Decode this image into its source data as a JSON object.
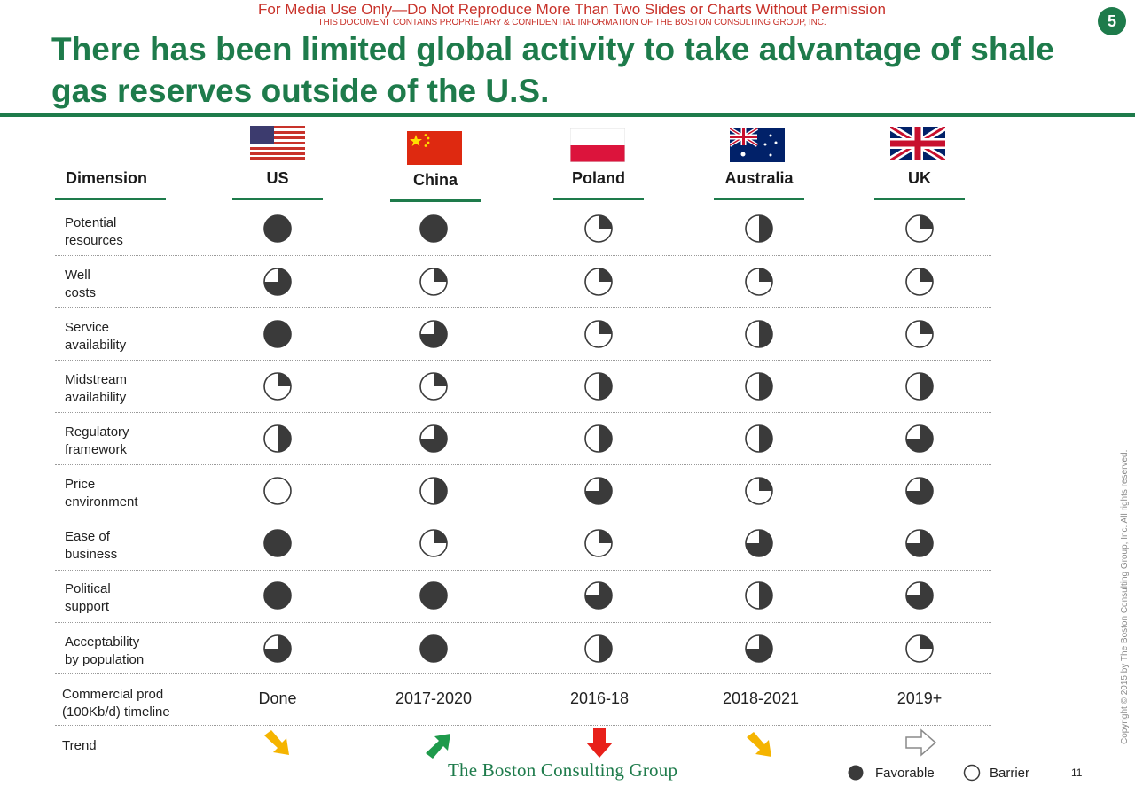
{
  "header": {
    "disclaimer": "For Media Use Only—Do Not Reproduce More Than Two Slides or Charts Without Permission",
    "confidential": "THIS DOCUMENT CONTAINS PROPRIETARY & CONFIDENTIAL INFORMATION OF THE BOSTON CONSULTING GROUP, INC.",
    "badge": "5",
    "title": "There has been limited global activity to take advantage of shale gas reserves outside of the U.S."
  },
  "table": {
    "dimension_header": "Dimension",
    "countries": [
      {
        "name": "US",
        "flag": "us-flag-icon"
      },
      {
        "name": "China",
        "flag": "china-flag-icon"
      },
      {
        "name": "Poland",
        "flag": "poland-flag-icon"
      },
      {
        "name": "Australia",
        "flag": "australia-flag-icon"
      },
      {
        "name": "UK",
        "flag": "uk-flag-icon"
      }
    ],
    "rows": [
      {
        "line1": "Potential",
        "line2": "resources",
        "ratings": [
          1,
          1,
          0.25,
          0.5,
          0.25
        ]
      },
      {
        "line1": "Well",
        "line2": "costs",
        "ratings": [
          0.75,
          0.25,
          0.25,
          0.25,
          0.25
        ]
      },
      {
        "line1": "Service",
        "line2": "availability",
        "ratings": [
          1,
          0.75,
          0.25,
          0.5,
          0.25
        ]
      },
      {
        "line1": "Midstream",
        "line2": "availability",
        "ratings": [
          0.25,
          0.25,
          0.5,
          0.5,
          0.5
        ]
      },
      {
        "line1": "Regulatory",
        "line2": "framework",
        "ratings": [
          0.5,
          0.75,
          0.5,
          0.5,
          0.75
        ]
      },
      {
        "line1": "Price",
        "line2": "environment",
        "ratings": [
          0,
          0.5,
          0.75,
          0.25,
          0.75
        ]
      },
      {
        "line1": "Ease of",
        "line2": "business",
        "ratings": [
          1,
          0.25,
          0.25,
          0.75,
          0.75
        ]
      },
      {
        "line1": "Political",
        "line2": "support",
        "ratings": [
          1,
          1,
          0.75,
          0.5,
          0.75
        ]
      },
      {
        "line1": "Acceptability",
        "line2": "by population",
        "ratings": [
          0.75,
          1,
          0.5,
          0.75,
          0.25
        ]
      }
    ],
    "timeline_row": {
      "line1": "Commercial prod",
      "line2": "(100Kb/d) timeline",
      "values": [
        "Done",
        "2017-2020",
        "2016-18",
        "2018-2021",
        "2019+"
      ]
    },
    "trend_row": {
      "label": "Trend",
      "arrows": [
        {
          "direction": "down-right",
          "color": "#f5b400",
          "icon": "arrow-down-right-icon"
        },
        {
          "direction": "up-right",
          "color": "#1e9a4b",
          "icon": "arrow-up-right-icon"
        },
        {
          "direction": "down",
          "color": "#e8201a",
          "icon": "arrow-down-icon"
        },
        {
          "direction": "down-right",
          "color": "#f5b400",
          "icon": "arrow-down-right-icon"
        },
        {
          "direction": "right",
          "color": "#ffffff",
          "icon": "arrow-right-outline-icon"
        }
      ]
    }
  },
  "legend": {
    "favorable": "Favorable",
    "barrier": "Barrier"
  },
  "footer": {
    "logo_text": "The Boston Consulting Group",
    "page_number": "11",
    "copyright": "Copyright © 2015 by The Boston Consulting Group, Inc. All rights reserved."
  },
  "colors": {
    "brand_green": "#1e7b4b",
    "disclaimer_red": "#c8322a",
    "ball_fill": "#3a3a3a"
  }
}
